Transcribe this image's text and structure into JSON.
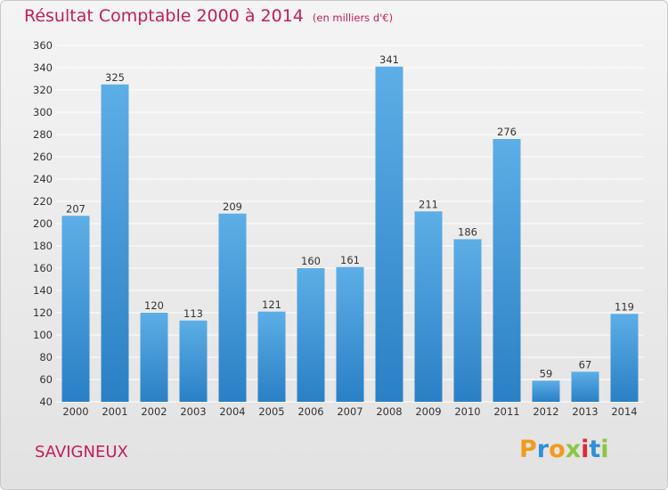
{
  "header": {
    "title": "Résultat Comptable 2000 à 2014",
    "subtitle": "(en milliers d'€)"
  },
  "footer": {
    "commune": "SAVIGNEUX",
    "logo": {
      "text": "Proxiti",
      "letters": [
        {
          "ch": "P",
          "color": "#f29a1b"
        },
        {
          "ch": "r",
          "color": "#2f8fd8"
        },
        {
          "ch": "o",
          "color": "#f29a1b"
        },
        {
          "ch": "x",
          "color": "#8cc63f"
        },
        {
          "ch": "i",
          "color": "#e0283a"
        },
        {
          "ch": "t",
          "color": "#2f8fd8"
        },
        {
          "ch": "i",
          "color": "#8cc63f"
        }
      ]
    }
  },
  "colors": {
    "title": "#c61c5c",
    "bar_top": "#5daee6",
    "bar_bottom": "#2a80c5",
    "grid": "#ffffff",
    "axis_text": "#333333"
  },
  "chart_data": {
    "type": "bar",
    "title": "Résultat Comptable 2000 à 2014",
    "subtitle": "(en milliers d'€)",
    "xlabel": "",
    "ylabel": "",
    "categories": [
      "2000",
      "2001",
      "2002",
      "2003",
      "2004",
      "2005",
      "2006",
      "2007",
      "2008",
      "2009",
      "2010",
      "2011",
      "2012",
      "2013",
      "2014"
    ],
    "values": [
      207,
      325,
      120,
      113,
      209,
      121,
      160,
      161,
      341,
      211,
      186,
      276,
      59,
      67,
      119
    ],
    "data_labels": [
      "207",
      "325",
      "120",
      "113",
      "209",
      "121",
      "160",
      "161",
      "341",
      "211",
      "186",
      "276",
      "59",
      "67",
      "119"
    ],
    "ylim": [
      40,
      360
    ],
    "yticks": [
      40,
      60,
      80,
      100,
      120,
      140,
      160,
      180,
      200,
      220,
      240,
      260,
      280,
      300,
      320,
      340,
      360
    ],
    "ytick_labels": [
      "40",
      "60",
      "80",
      "100",
      "120",
      "140",
      "160",
      "180",
      "200",
      "220",
      "240",
      "260",
      "280",
      "300",
      "320",
      "340",
      "360"
    ],
    "grid": true,
    "legend": "none"
  }
}
